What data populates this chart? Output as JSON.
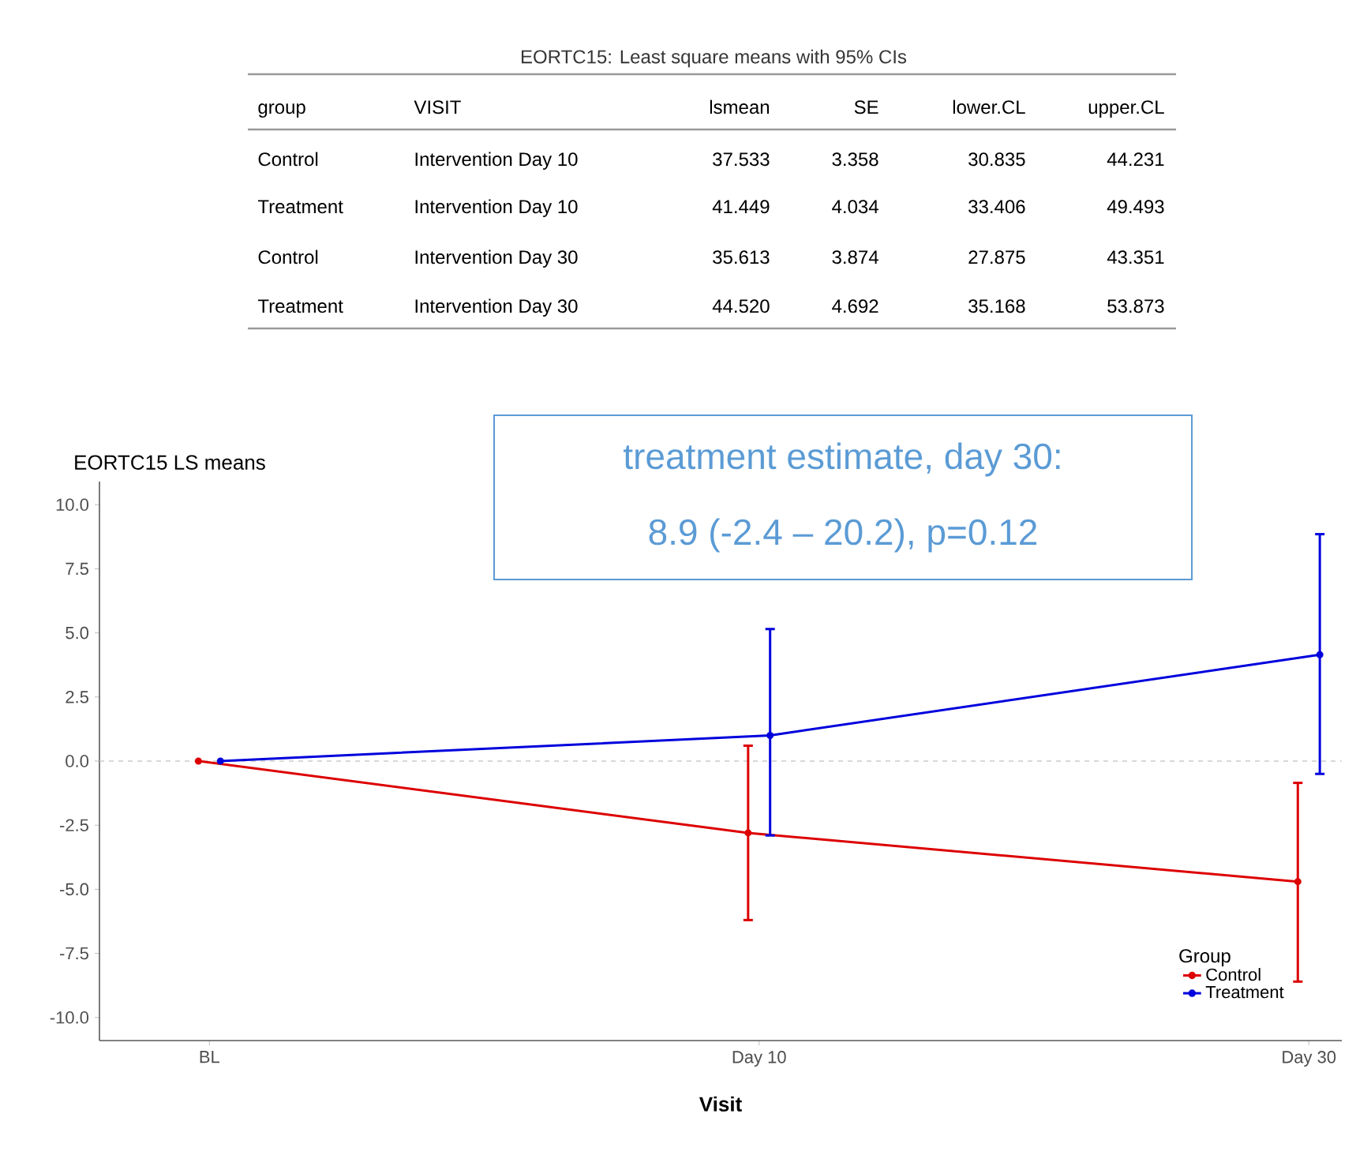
{
  "chart_data": {
    "type": "line",
    "title": "EORTC15 LS means",
    "xlabel": "Visit",
    "legend_title": "Group",
    "categories": [
      "BL",
      "Day 10",
      "Day 30"
    ],
    "ylim": [
      -10.9,
      10.9
    ],
    "yticks": [
      {
        "value": -10,
        "label": "-10.0"
      },
      {
        "value": -7.5,
        "label": "-7.5"
      },
      {
        "value": -5,
        "label": "-5.0"
      },
      {
        "value": -2.5,
        "label": "-2.5"
      },
      {
        "value": 0,
        "label": "0.0"
      },
      {
        "value": 2.5,
        "label": "2.5"
      },
      {
        "value": 5,
        "label": "5.0"
      },
      {
        "value": 7.5,
        "label": "7.5"
      },
      {
        "value": 10,
        "label": "10.0"
      }
    ],
    "series": [
      {
        "name": "Control",
        "color": "#dd0000",
        "values": [
          0,
          -2.8,
          -4.7
        ],
        "errors": [
          null,
          [
            -6.2,
            0.6
          ],
          [
            -8.6,
            -0.85
          ]
        ]
      },
      {
        "name": "Treatment",
        "color": "#0000dd",
        "values": [
          0,
          1.0,
          4.15
        ],
        "errors": [
          null,
          [
            -2.9,
            5.15
          ],
          [
            -0.5,
            8.85
          ]
        ]
      }
    ],
    "ref_lines": [
      {
        "axis": "y",
        "value": 0,
        "color": "#cccccc",
        "line_style": "dashed"
      }
    ],
    "legend": "bottom right",
    "marker": "circle",
    "line_style": "solid",
    "annotations": [
      "EORTC15: Least square means with 95% CIs",
      "group",
      "VISIT",
      "lsmean",
      "SE",
      "lower.CL",
      "upper.CL",
      "Control",
      "Intervention Day 10",
      "37.533",
      "3.358",
      "30.835",
      "44.231",
      "Treatment",
      "Intervention Day 10",
      "41.449",
      "4.034",
      "33.406",
      "49.493",
      "Control",
      "Intervention Day 30",
      "35.613",
      "3.874",
      "27.875",
      "43.351",
      "Treatment",
      "Intervention Day 30",
      "44.520",
      "4.692",
      "35.168",
      "53.873",
      "treatment estimate, day 30:",
      "8.9 (-2.4 – 20.2),  p=0.12"
    ]
  }
}
